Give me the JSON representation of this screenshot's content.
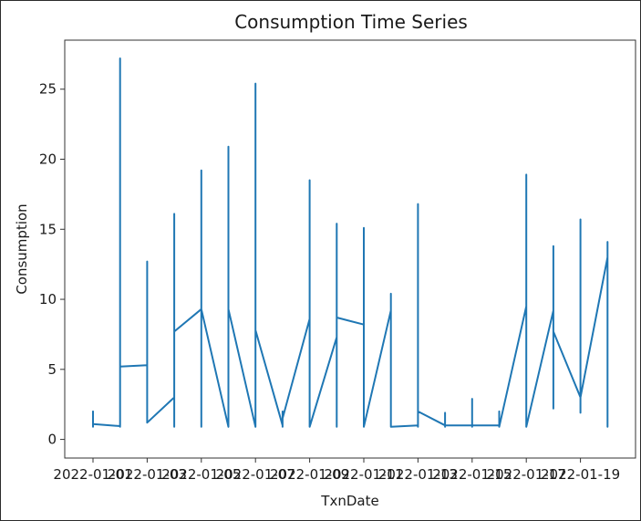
{
  "chart_data": {
    "type": "line",
    "title": "Consumption Time Series",
    "xlabel": "TxnDate",
    "ylabel": "Consumption",
    "ylim": [
      -1.33,
      28.5
    ],
    "grid": false,
    "line_color": "#1f77b4",
    "x_tick_labels": [
      "2022-01-01",
      "2022-01-03",
      "2022-01-05",
      "2022-01-07",
      "2022-01-09",
      "2022-01-11",
      "2022-01-13",
      "2022-01-15",
      "2022-01-17",
      "2022-01-19"
    ],
    "y_ticks": [
      0,
      5,
      10,
      15,
      20,
      25
    ],
    "series": [
      {
        "values_by_day": [
          {
            "date": "2022-01-01",
            "min": 0.9,
            "max": 2.0,
            "start": 1.1,
            "end": 1.1
          },
          {
            "date": "2022-01-02",
            "min": 0.9,
            "max": 27.2,
            "start": 0.95,
            "end": 5.2
          },
          {
            "date": "2022-01-03",
            "min": 1.2,
            "max": 12.7,
            "start": 5.3,
            "end": 1.2
          },
          {
            "date": "2022-01-04",
            "min": 0.9,
            "max": 16.1,
            "start": 3.0,
            "end": 7.7
          },
          {
            "date": "2022-01-05",
            "min": 0.9,
            "max": 19.2,
            "start": 9.3,
            "end": 9.3
          },
          {
            "date": "2022-01-06",
            "min": 0.9,
            "max": 20.9,
            "start": 0.9,
            "end": 9.3
          },
          {
            "date": "2022-01-07",
            "min": 0.9,
            "max": 25.4,
            "start": 0.9,
            "end": 7.8
          },
          {
            "date": "2022-01-08",
            "min": 0.9,
            "max": 2.0,
            "start": 1.0,
            "end": 1.5
          },
          {
            "date": "2022-01-09",
            "min": 0.9,
            "max": 18.5,
            "start": 8.6,
            "end": 0.9
          },
          {
            "date": "2022-01-10",
            "min": 0.9,
            "max": 15.4,
            "start": 7.3,
            "end": 8.7
          },
          {
            "date": "2022-01-11",
            "min": 0.9,
            "max": 15.1,
            "start": 8.2,
            "end": 0.9
          },
          {
            "date": "2022-01-12",
            "min": 0.9,
            "max": 10.4,
            "start": 9.2,
            "end": 0.9
          },
          {
            "date": "2022-01-13",
            "min": 0.9,
            "max": 16.8,
            "start": 1.0,
            "end": 2.0
          },
          {
            "date": "2022-01-14",
            "min": 0.9,
            "max": 1.9,
            "start": 1.0,
            "end": 1.0
          },
          {
            "date": "2022-01-15",
            "min": 0.9,
            "max": 2.9,
            "start": 1.0,
            "end": 1.0
          },
          {
            "date": "2022-01-16",
            "min": 0.9,
            "max": 2.0,
            "start": 1.0,
            "end": 0.9
          },
          {
            "date": "2022-01-17",
            "min": 0.9,
            "max": 18.9,
            "start": 9.5,
            "end": 0.9
          },
          {
            "date": "2022-01-18",
            "min": 2.2,
            "max": 13.8,
            "start": 9.2,
            "end": 7.7
          },
          {
            "date": "2022-01-19",
            "min": 1.9,
            "max": 15.7,
            "start": 3.0,
            "end": 3.0
          },
          {
            "date": "2022-01-20",
            "min": 0.9,
            "max": 14.1,
            "start": 13.0,
            "end": 13.0
          }
        ]
      }
    ]
  }
}
